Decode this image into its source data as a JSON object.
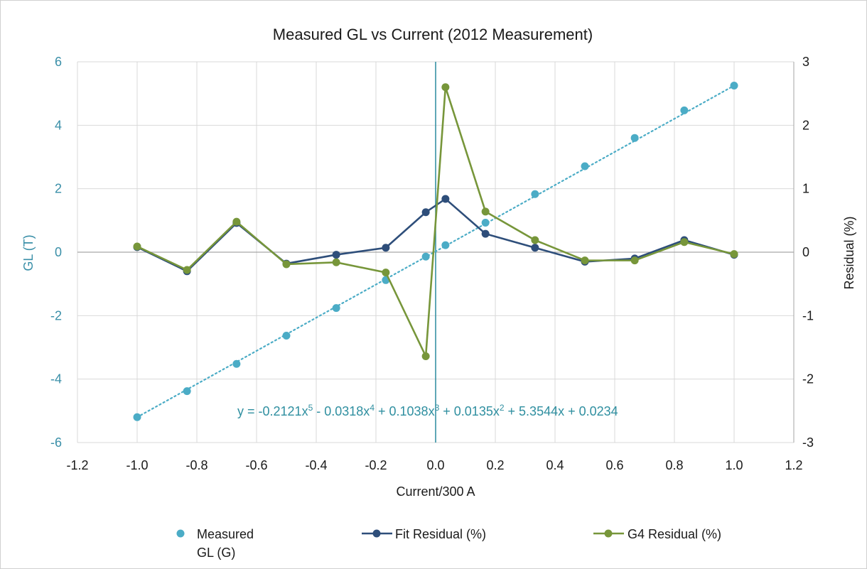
{
  "chart_data": {
    "type": "line",
    "title": "Measured GL vs Current (2012 Measurement)",
    "xlabel": "Current/300 A",
    "ylabel": "GL (T)",
    "y2label": "Residual (%)",
    "xlim": [
      -1.2,
      1.2
    ],
    "xticks": [
      "-1.2",
      "-1.0",
      "-0.8",
      "-0.6",
      "-0.4",
      "-0.2",
      "0.0",
      "0.2",
      "0.4",
      "0.6",
      "0.8",
      "1.0",
      "1.2"
    ],
    "ylim": [
      -6,
      6
    ],
    "yticks": [
      "-6",
      "-4",
      "-2",
      "0",
      "2",
      "4",
      "6"
    ],
    "y2lim": [
      -3,
      3
    ],
    "y2ticks": [
      "-3",
      "-2",
      "-1",
      "0",
      "1",
      "2",
      "3"
    ],
    "grid": true,
    "legend_position": "bottom",
    "equation": {
      "prefix": "y = -0.2121x",
      "parts": [
        {
          "sup": "5",
          "text": " - 0.0318x"
        },
        {
          "sup": "4",
          "text": " + 0.1038x"
        },
        {
          "sup": "3",
          "text": " + 0.0135x"
        },
        {
          "sup": "2",
          "text": " + 5.3544x + 0.0234"
        }
      ]
    },
    "series": [
      {
        "name_lines": [
          "Measured",
          "GL (G)"
        ],
        "axis": "left",
        "style": "scatter-trend",
        "color": "#4bacc6",
        "x": [
          -1.0,
          -0.833,
          -0.667,
          -0.5,
          -0.333,
          -0.167,
          -0.033,
          0.033,
          0.167,
          0.333,
          0.5,
          0.667,
          0.833,
          1.0
        ],
        "y": [
          -5.2,
          -4.38,
          -3.52,
          -2.63,
          -1.76,
          -0.88,
          -0.14,
          0.22,
          0.93,
          1.83,
          2.71,
          3.6,
          4.47,
          5.25
        ]
      },
      {
        "name": "Fit Residual (%)",
        "axis": "right",
        "style": "line-marker",
        "color": "#2e4e7a",
        "x": [
          -1.0,
          -0.833,
          -0.667,
          -0.5,
          -0.333,
          -0.167,
          -0.033,
          0.033,
          0.167,
          0.333,
          0.5,
          0.667,
          0.833,
          1.0
        ],
        "y": [
          0.08,
          -0.3,
          0.46,
          -0.18,
          -0.04,
          0.07,
          0.63,
          0.84,
          0.29,
          0.07,
          -0.15,
          -0.1,
          0.19,
          -0.04
        ]
      },
      {
        "name": "G4 Residual (%)",
        "axis": "right",
        "style": "line-marker",
        "color": "#77963a",
        "x": [
          -1.0,
          -0.833,
          -0.667,
          -0.5,
          -0.333,
          -0.167,
          -0.033,
          0.033,
          0.167,
          0.333,
          0.5,
          0.667,
          0.833,
          1.0
        ],
        "y": [
          0.09,
          -0.28,
          0.48,
          -0.19,
          -0.16,
          -0.32,
          -1.64,
          2.6,
          0.64,
          0.19,
          -0.13,
          -0.13,
          0.16,
          -0.03
        ]
      }
    ]
  }
}
